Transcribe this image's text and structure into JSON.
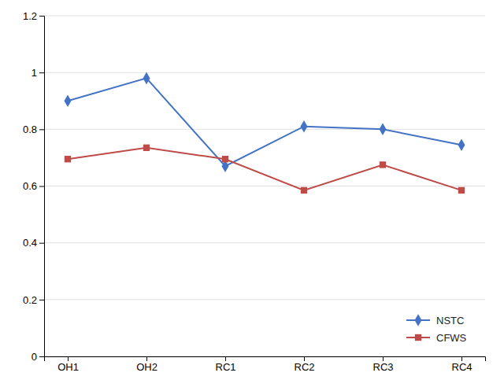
{
  "chart_data": {
    "type": "line",
    "categories": [
      "OH1",
      "OH2",
      "RC1",
      "RC2",
      "RC3",
      "RC4"
    ],
    "series": [
      {
        "name": "NSTC",
        "color": "#4472C4",
        "marker": "diamond",
        "values": [
          0.9,
          0.98,
          0.67,
          0.81,
          0.8,
          0.745
        ]
      },
      {
        "name": "CFWS",
        "color": "#BE4B48",
        "marker": "square",
        "values": [
          0.695,
          0.735,
          0.695,
          0.585,
          0.675,
          0.585
        ]
      }
    ],
    "ylim": [
      0,
      1.2
    ],
    "yticks": [
      0,
      0.2,
      0.4,
      0.6,
      0.8,
      1,
      1.2
    ],
    "grid": true,
    "legend": "lower right"
  }
}
